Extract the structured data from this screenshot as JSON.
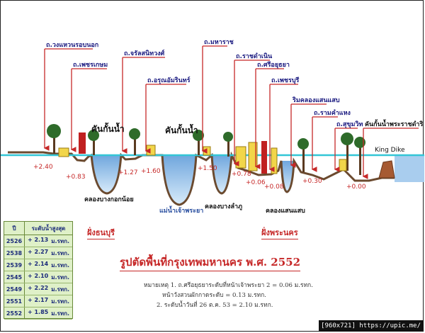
{
  "diagram": {
    "title": "รูปตัดพื้นที่กรุงเทพมหานคร พ.ศ. 2552",
    "top_labels": [
      "ถ.วงแหวนรอบนอก",
      "ถ.เพชรเกษม",
      "ถ.จรัลสนิทวงศ์",
      "ถ.อรุณอัมรินทร์",
      "ถ.มหาราช",
      "ถ.ราชดำเนิน",
      "ถ.ศรีอยุธยา",
      "ถ.เพชรบุรี",
      "ริมคลองแสนแสบ",
      "ถ.รามคำแหง",
      "ถ.สุขุมวิท",
      "คันกั้นน้ำพระราชดำริ"
    ],
    "dike_labels": [
      "คันกั้นน้ำ",
      "คันกั้นน้ำ"
    ],
    "king_dike": "King Dike",
    "elevations": [
      "+2.40",
      "+0.83",
      "+1.27",
      "+1.60",
      "+1.50",
      "+0.78",
      "+0.06",
      "+0.08",
      "+0.30",
      "+0.00"
    ],
    "canals": [
      "คลองบางกอกน้อย",
      "แม่น้ำเจ้าพระยา",
      "คลองบางลำภู",
      "คลองแสนแสบ"
    ],
    "sides": [
      "ฝั่งธนบุรี",
      "ฝั่งพระนคร"
    ],
    "notes": [
      "หมายเหตุ  1. ถ.ศรีอยุธยาระดับที่หน้าเจ้าพระยา 2 = 0.06 ม.รทก.",
      "หน้าวังสวนผักกาดระดับ = 0.13 ม.รทก.",
      "2. ระดับน้ำวันที่ 26 ต.ค. 53 = 2.10 ม.รทก."
    ]
  },
  "table": {
    "col_year": "ปี",
    "col_level": "ระดับน้ำสูงสุด",
    "unit": "ม.รทก.",
    "rows": [
      {
        "year": "2526",
        "level": "+ 2.13"
      },
      {
        "year": "2538",
        "level": "+ 2.27"
      },
      {
        "year": "2539",
        "level": "+ 2.14"
      },
      {
        "year": "2545",
        "level": "+ 2.10"
      },
      {
        "year": "2549",
        "level": "+ 2.22"
      },
      {
        "year": "2551",
        "level": "+ 2.17"
      },
      {
        "year": "2552",
        "level": "+ 1.85"
      }
    ]
  },
  "footer": "[960x721] https://upic.me/",
  "colors": {
    "water_line": "#33c6d6",
    "water": "#9ec6ec",
    "ground": "#6b4a2f",
    "arrow": "#c62828",
    "table_bg": "#dff0c8"
  }
}
